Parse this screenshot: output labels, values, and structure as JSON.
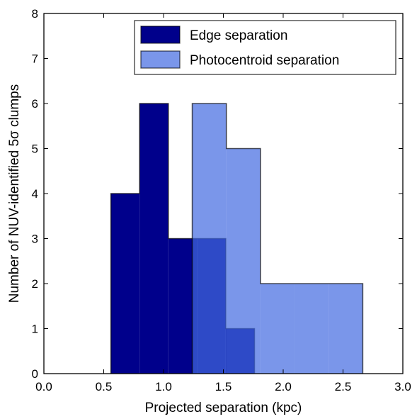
{
  "chart_data": {
    "type": "histogram",
    "title": "",
    "xlabel": "Projected separation (kpc)",
    "ylabel": "Number of NUV-identified 5σ clumps",
    "xlim": [
      0.0,
      3.0
    ],
    "ylim": [
      0,
      8
    ],
    "xticks": [
      "0.0",
      "0.5",
      "1.0",
      "1.5",
      "2.0",
      "2.5",
      "3.0"
    ],
    "yticks": [
      "0",
      "1",
      "2",
      "3",
      "4",
      "5",
      "6",
      "7",
      "8"
    ],
    "grid": false,
    "legend_position": "upper-right",
    "series": [
      {
        "name": "Edge separation",
        "color": "#00008b",
        "opacity": 1.0,
        "bin_edges": [
          0.56,
          0.8,
          1.04,
          1.28,
          1.52,
          1.76
        ],
        "counts": [
          4,
          6,
          3,
          3,
          1
        ]
      },
      {
        "name": "Photocentroid separation",
        "color": "#4169e1",
        "opacity": 0.7,
        "bin_edges": [
          1.24,
          1.525,
          1.81,
          2.095,
          2.38,
          2.665
        ],
        "counts": [
          6,
          5,
          2,
          2,
          2
        ]
      }
    ]
  }
}
